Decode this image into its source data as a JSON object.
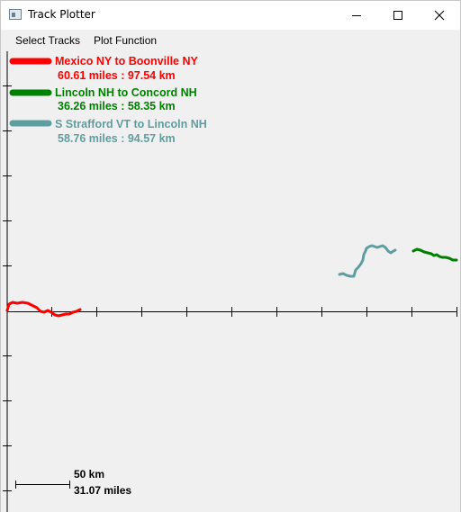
{
  "window": {
    "title": "Track Plotter",
    "icon": "app-window-icon",
    "controls": [
      "minimize-icon",
      "maximize-icon",
      "close-icon"
    ]
  },
  "menu": {
    "items": [
      {
        "label": "Select Tracks"
      },
      {
        "label": "Plot Function"
      }
    ]
  },
  "tracks": [
    {
      "name": "Mexico NY to Boonville NY",
      "distance": "60.61 miles : 97.54 km",
      "color": "#ff0000"
    },
    {
      "name": "Lincoln NH to Concord NH",
      "distance": "36.26 miles : 58.35 km",
      "color": "#008000"
    },
    {
      "name": "S Strafford VT to Lincoln NH",
      "distance": "58.76 miles : 94.57 km",
      "color": "#5f9ea0"
    }
  ],
  "scale_bar": {
    "km_label": "50 km",
    "miles_label": "31.07 miles"
  },
  "colors": {
    "plot_background": "#f0f0f0",
    "axis": "#000000",
    "menubar": "#f0f0f0"
  }
}
